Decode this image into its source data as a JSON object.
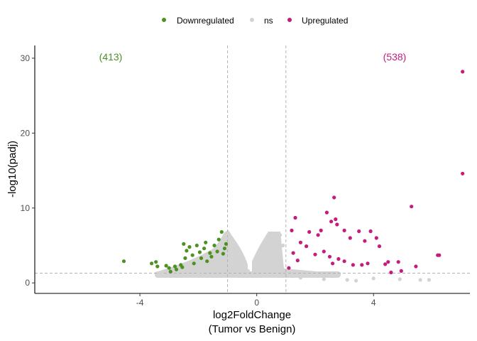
{
  "chart_data": {
    "type": "scatter",
    "xlabel": [
      "log2FoldChange",
      "(Tumor vs Benign)"
    ],
    "ylabel": "-log10(padj)",
    "xlim": [
      -7.6,
      7.3
    ],
    "ylim": [
      -1.4,
      31.7
    ],
    "xticks": [
      -4,
      0,
      4
    ],
    "yticks": [
      0,
      10,
      20,
      30
    ],
    "grid": false,
    "legend_position": "top",
    "thresholds": {
      "log2fc": [
        -1,
        1
      ],
      "neg_log10_padj": 1.3
    },
    "colors": {
      "Downregulated": "#4d9221",
      "ns": "#d3d3d3",
      "Upregulated": "#c51b7d"
    },
    "series": [
      {
        "name": "Downregulated",
        "count_label": "(413)",
        "points": [
          [
            -4.55,
            2.9
          ],
          [
            -3.6,
            2.6
          ],
          [
            -3.45,
            2.8
          ],
          [
            -3.4,
            2.2
          ],
          [
            -3.1,
            2.3
          ],
          [
            -3.0,
            2.0
          ],
          [
            -2.95,
            1.5
          ],
          [
            -2.8,
            2.2
          ],
          [
            -2.75,
            1.8
          ],
          [
            -2.6,
            2.4
          ],
          [
            -2.55,
            2.1
          ],
          [
            -2.5,
            5.2
          ],
          [
            -2.45,
            3.3
          ],
          [
            -2.4,
            4.3
          ],
          [
            -2.3,
            4.8
          ],
          [
            -2.2,
            3.7
          ],
          [
            -2.15,
            2.6
          ],
          [
            -2.05,
            5.0
          ],
          [
            -1.95,
            4.1
          ],
          [
            -1.9,
            3.3
          ],
          [
            -1.8,
            4.6
          ],
          [
            -1.75,
            5.4
          ],
          [
            -1.7,
            2.9
          ],
          [
            -1.6,
            4.0
          ],
          [
            -1.55,
            3.5
          ],
          [
            -1.45,
            5.0
          ],
          [
            -1.35,
            4.2
          ],
          [
            -1.3,
            5.8
          ],
          [
            -1.2,
            6.8
          ],
          [
            -1.15,
            3.9
          ],
          [
            -1.1,
            4.6
          ],
          [
            -1.05,
            5.2
          ]
        ]
      },
      {
        "name": "ns",
        "points": [
          [
            -3.3,
            1.2
          ],
          [
            -2.0,
            1.3
          ],
          [
            -1.0,
            6.6
          ],
          [
            -0.9,
            5.0
          ],
          [
            -0.6,
            3.1
          ],
          [
            -0.5,
            2.4
          ],
          [
            -0.3,
            1.6
          ],
          [
            0.3,
            2.6
          ],
          [
            0.4,
            4.8
          ],
          [
            0.6,
            6.2
          ],
          [
            0.7,
            5.5
          ],
          [
            0.8,
            6.4
          ],
          [
            0.9,
            5.0
          ],
          [
            1.5,
            0.7
          ],
          [
            2.3,
            0.5
          ],
          [
            3.1,
            0.4
          ],
          [
            3.4,
            0.3
          ],
          [
            4.0,
            0.6
          ],
          [
            4.9,
            0.5
          ],
          [
            5.6,
            0.4
          ],
          [
            5.9,
            0.4
          ]
        ]
      },
      {
        "name": "Upregulated",
        "count_label": "(538)",
        "points": [
          [
            7.05,
            28.2
          ],
          [
            7.05,
            14.6
          ],
          [
            5.3,
            10.2
          ],
          [
            2.65,
            11.4
          ],
          [
            2.4,
            9.4
          ],
          [
            1.32,
            8.7
          ],
          [
            2.7,
            8.5
          ],
          [
            2.75,
            7.8
          ],
          [
            2.55,
            8.2
          ],
          [
            3.0,
            7.0
          ],
          [
            3.5,
            6.9
          ],
          [
            3.9,
            6.9
          ],
          [
            1.2,
            7.0
          ],
          [
            1.8,
            6.8
          ],
          [
            2.1,
            6.4
          ],
          [
            2.2,
            7.0
          ],
          [
            3.2,
            6.0
          ],
          [
            3.7,
            5.6
          ],
          [
            4.1,
            6.0
          ],
          [
            4.2,
            4.9
          ],
          [
            6.25,
            3.7
          ],
          [
            6.2,
            3.7
          ],
          [
            5.45,
            2.2
          ],
          [
            4.85,
            2.8
          ],
          [
            4.95,
            1.6
          ],
          [
            4.6,
            1.4
          ],
          [
            4.4,
            2.5
          ],
          [
            4.5,
            2.8
          ],
          [
            3.8,
            2.6
          ],
          [
            3.6,
            2.4
          ],
          [
            3.3,
            2.4
          ],
          [
            3.0,
            2.9
          ],
          [
            2.8,
            3.2
          ],
          [
            2.6,
            2.6
          ],
          [
            2.5,
            3.5
          ],
          [
            2.3,
            4.2
          ],
          [
            2.0,
            3.8
          ],
          [
            1.7,
            4.9
          ],
          [
            1.5,
            5.4
          ],
          [
            1.4,
            3.0
          ],
          [
            1.25,
            4.0
          ],
          [
            1.1,
            2.0
          ]
        ]
      }
    ]
  }
}
